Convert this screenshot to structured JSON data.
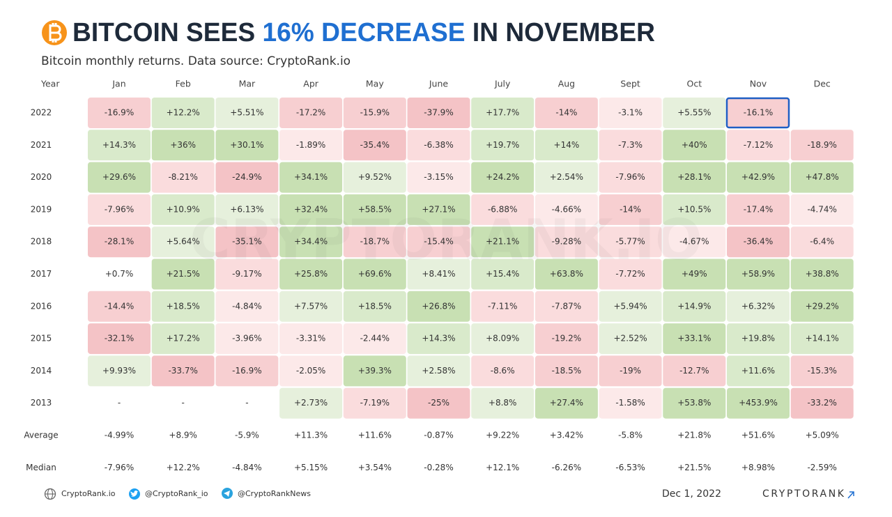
{
  "header": {
    "title": [
      "BITCOIN SEES ",
      "16% DECREASE",
      " IN NOVEMBER"
    ],
    "subtitle": "Bitcoin monthly returns. Data source: CryptoRank.io"
  },
  "watermark": "CRYPTORANK.IO",
  "table": {
    "columns": [
      "Year",
      "Jan",
      "Feb",
      "Mar",
      "Apr",
      "May",
      "June",
      "July",
      "Aug",
      "Sept",
      "Oct",
      "Nov",
      "Dec"
    ],
    "rows": [
      {
        "label": "2022",
        "cells": [
          "-16.9%",
          "+12.2%",
          "+5.51%",
          "-17.2%",
          "-15.9%",
          "-37.9%",
          "+17.7%",
          "-14%",
          "-3.1%",
          "+5.55%",
          "-16.1%"
        ]
      },
      {
        "label": "2021",
        "cells": [
          "+14.3%",
          "+36%",
          "+30.1%",
          "-1.89%",
          "-35.4%",
          "-6.38%",
          "+19.7%",
          "+14%",
          "-7.3%",
          "+40%",
          "-7.12%",
          "-18.9%"
        ]
      },
      {
        "label": "2020",
        "cells": [
          "+29.6%",
          "-8.21%",
          "-24.9%",
          "+34.1%",
          "+9.52%",
          "-3.15%",
          "+24.2%",
          "+2.54%",
          "-7.96%",
          "+28.1%",
          "+42.9%",
          "+47.8%"
        ]
      },
      {
        "label": "2019",
        "cells": [
          "-7.96%",
          "+10.9%",
          "+6.13%",
          "+32.4%",
          "+58.5%",
          "+27.1%",
          "-6.88%",
          "-4.66%",
          "-14%",
          "+10.5%",
          "-17.4%",
          "-4.74%"
        ]
      },
      {
        "label": "2018",
        "cells": [
          "-28.1%",
          "+5.64%",
          "-35.1%",
          "+34.4%",
          "-18.7%",
          "-15.4%",
          "+21.1%",
          "-9.28%",
          "-5.77%",
          "-4.67%",
          "-36.4%",
          "-6.4%"
        ]
      },
      {
        "label": "2017",
        "cells": [
          "+0.7%",
          "+21.5%",
          "-9.17%",
          "+25.8%",
          "+69.6%",
          "+8.41%",
          "+15.4%",
          "+63.8%",
          "-7.72%",
          "+49%",
          "+58.9%",
          "+38.8%"
        ]
      },
      {
        "label": "2016",
        "cells": [
          "-14.4%",
          "+18.5%",
          "-4.84%",
          "+7.57%",
          "+18.5%",
          "+26.8%",
          "-7.11%",
          "-7.87%",
          "+5.94%",
          "+14.9%",
          "+6.32%",
          "+29.2%"
        ]
      },
      {
        "label": "2015",
        "cells": [
          "-32.1%",
          "+17.2%",
          "-3.96%",
          "-3.31%",
          "-2.44%",
          "+14.3%",
          "+8.09%",
          "-19.2%",
          "+2.52%",
          "+33.1%",
          "+19.8%",
          "+14.1%"
        ]
      },
      {
        "label": "2014",
        "cells": [
          "+9.93%",
          "-33.7%",
          "-16.9%",
          "-2.05%",
          "+39.3%",
          "+2.58%",
          "-8.6%",
          "-18.5%",
          "-19%",
          "-12.7%",
          "+11.6%",
          "-15.3%"
        ]
      },
      {
        "label": "2013",
        "cells": [
          "-",
          "-",
          "-",
          "+2.73%",
          "-7.19%",
          "-25%",
          "+8.8%",
          "+27.4%",
          "-1.58%",
          "+53.8%",
          "+453.9%",
          "-33.2%"
        ]
      }
    ],
    "summary_rows": [
      {
        "label": "Average",
        "cells": [
          "-4.99%",
          "+8.9%",
          "-5.9%",
          "+11.3%",
          "+11.6%",
          "-0.87%",
          "+9.22%",
          "+3.42%",
          "-5.8%",
          "+21.8%",
          "+51.6%",
          "+5.09%"
        ]
      },
      {
        "label": "Median",
        "cells": [
          "-7.96%",
          "+12.2%",
          "-4.84%",
          "+5.15%",
          "+3.54%",
          "-0.28%",
          "+12.1%",
          "-6.26%",
          "-6.53%",
          "+21.5%",
          "+8.98%",
          "-2.59%"
        ]
      }
    ],
    "highlight": {
      "row": 0,
      "cell": 10
    }
  },
  "footer": {
    "links": [
      "CryptoRank.io",
      "@CryptoRank_io",
      "@CryptoRankNews"
    ],
    "date": "Dec 1, 2022",
    "brand": "CRYPTORANK"
  }
}
